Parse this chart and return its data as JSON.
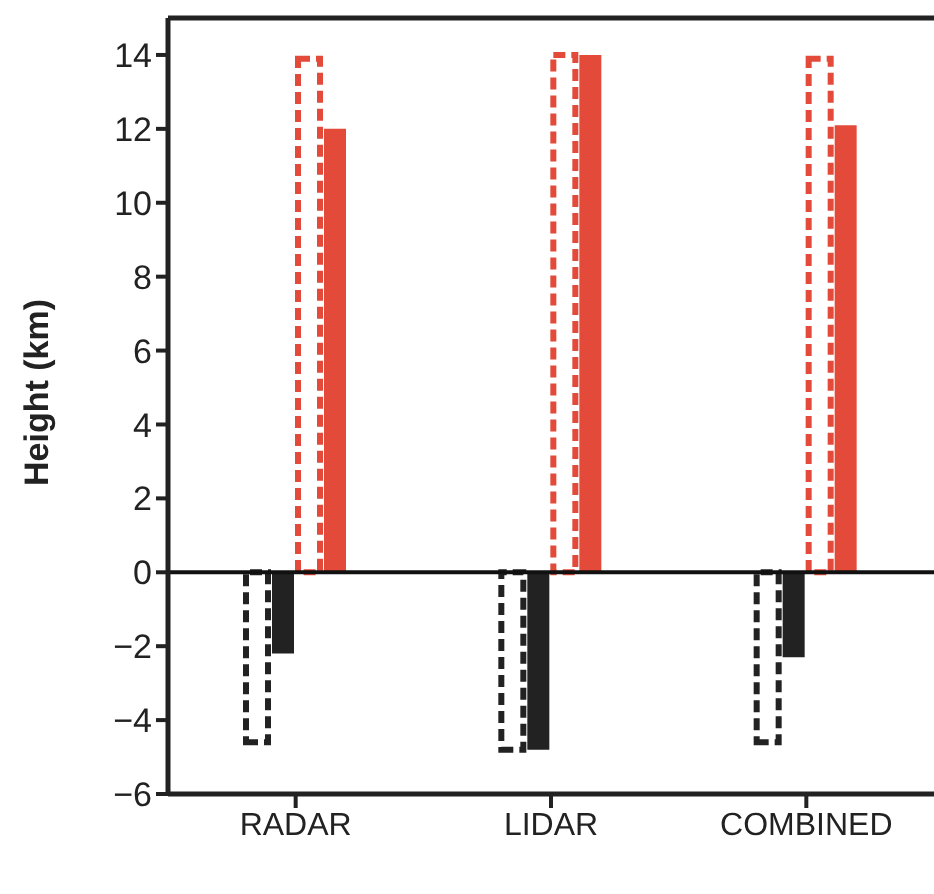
{
  "chart_data": {
    "type": "bar",
    "ylabel": "Height (km)",
    "categories": [
      "RADAR",
      "LIDAR",
      "COMBINED"
    ],
    "series": [
      {
        "color": "#222222",
        "line_style": "dashed",
        "values": [
          -4.6,
          -4.8,
          -4.6
        ]
      },
      {
        "color": "#222222",
        "values": [
          -2.2,
          -4.8,
          -2.3
        ]
      },
      {
        "color": "#e34a3a",
        "line_style": "dashed",
        "values": [
          13.9,
          14.0,
          13.9
        ]
      },
      {
        "color": "#e34a3a",
        "values": [
          12.0,
          14.0,
          12.1
        ]
      }
    ],
    "ylim": [
      -6,
      15
    ],
    "yticks": [
      -6,
      -4,
      -2,
      0,
      2,
      4,
      6,
      8,
      10,
      12,
      14
    ],
    "ref_lines": [
      {
        "axis": "y",
        "value": 0,
        "color": "#111111"
      }
    ],
    "grid": false,
    "legend": false
  }
}
